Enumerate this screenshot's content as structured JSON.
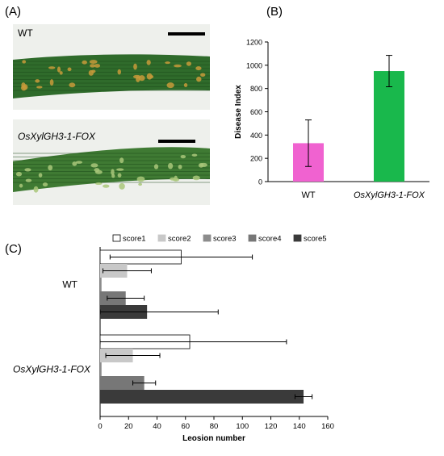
{
  "panels": {
    "a_label": "(A)",
    "b_label": "(B)",
    "c_label": "(C)"
  },
  "photos": [
    {
      "label": "WT",
      "italic": false,
      "leaf_color": "#2f6b2b"
    },
    {
      "label": "OsXylGH3-1-FOX",
      "italic": true,
      "leaf_color": "#3f7a33"
    }
  ],
  "chart_data": [
    {
      "type": "bar",
      "panel": "B",
      "categories": [
        "WT",
        "OsXylGH3-1-FOX"
      ],
      "values": [
        330,
        950
      ],
      "errors": [
        200,
        135
      ],
      "colors": [
        "#f062d0",
        "#19b84c"
      ],
      "ylabel": "Disease Index",
      "ylim": [
        0,
        1200
      ],
      "yticks": [
        0,
        200,
        400,
        600,
        800,
        1000,
        1200
      ],
      "grid": false
    },
    {
      "type": "bar",
      "orientation": "horizontal",
      "panel": "C",
      "categories": [
        "WT",
        "OsXylGH3-1-FOX"
      ],
      "xlabel": "Leosion number",
      "xlim": [
        0,
        160
      ],
      "xticks": [
        0,
        20,
        40,
        60,
        80,
        100,
        120,
        140,
        160
      ],
      "legend_position": "top",
      "series": [
        {
          "name": "score1",
          "color": "#ffffff",
          "values": [
            57,
            63
          ],
          "errors": [
            50,
            68
          ]
        },
        {
          "name": "score2",
          "color": "#c8c8c8",
          "values": [
            19,
            23
          ],
          "errors": [
            17,
            19
          ]
        },
        {
          "name": "score3",
          "color": "#8c8c8c",
          "values": [
            1,
            1
          ],
          "errors": [
            0,
            0
          ]
        },
        {
          "name": "score4",
          "color": "#777777",
          "values": [
            18,
            31
          ],
          "errors": [
            13,
            8
          ]
        },
        {
          "name": "score5",
          "color": "#3a3a3a",
          "values": [
            33,
            143
          ],
          "errors": [
            50,
            6
          ]
        }
      ]
    }
  ]
}
